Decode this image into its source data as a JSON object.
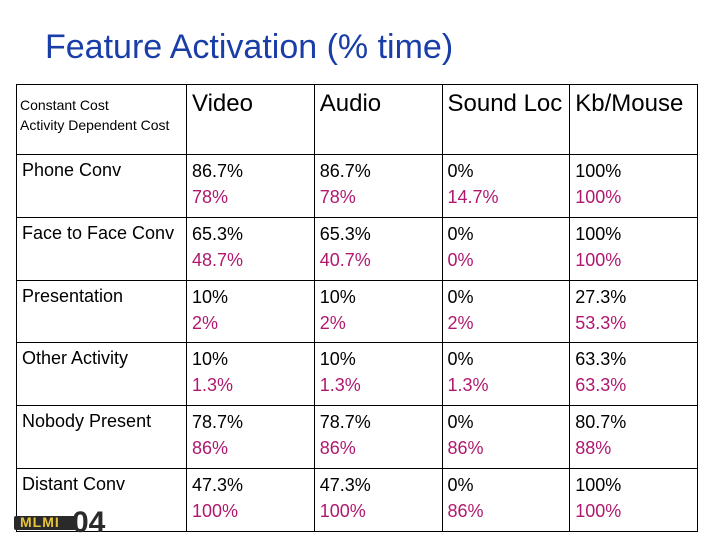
{
  "title": "Feature Activation (% time)",
  "corner": {
    "line1": "Constant Cost",
    "line2": "Activity Dependent Cost"
  },
  "columns": [
    "Video",
    "Audio",
    "Sound Loc",
    "Kb/Mouse"
  ],
  "rows": [
    {
      "label": "Phone Conv",
      "cells": [
        [
          "86.7%",
          "78%"
        ],
        [
          "86.7%",
          "78%"
        ],
        [
          "0%",
          "14.7%"
        ],
        [
          "100%",
          "100%"
        ]
      ]
    },
    {
      "label": "Face to Face Conv",
      "cells": [
        [
          "65.3%",
          "48.7%"
        ],
        [
          "65.3%",
          "40.7%"
        ],
        [
          "0%",
          "0%"
        ],
        [
          "100%",
          "100%"
        ]
      ]
    },
    {
      "label": "Presentation",
      "cells": [
        [
          "10%",
          "2%"
        ],
        [
          "10%",
          "2%"
        ],
        [
          "0%",
          "2%"
        ],
        [
          "27.3%",
          "53.3%"
        ]
      ]
    },
    {
      "label": "Other Activity",
      "cells": [
        [
          "10%",
          "1.3%"
        ],
        [
          "10%",
          "1.3%"
        ],
        [
          "0%",
          "1.3%"
        ],
        [
          "63.3%",
          "63.3%"
        ]
      ]
    },
    {
      "label": "Nobody Present",
      "cells": [
        [
          "78.7%",
          "86%"
        ],
        [
          "78.7%",
          "86%"
        ],
        [
          "0%",
          "86%"
        ],
        [
          "80.7%",
          "88%"
        ]
      ]
    },
    {
      "label": "Distant Conv",
      "cells": [
        [
          "47.3%",
          "100%"
        ],
        [
          "47.3%",
          "100%"
        ],
        [
          "0%",
          "86%"
        ],
        [
          "100%",
          "100%"
        ]
      ]
    }
  ],
  "logo": {
    "text": "MLMI",
    "number": "04"
  },
  "colors": {
    "title": "#1a3ea8",
    "secondary_value": "#b0186e"
  }
}
